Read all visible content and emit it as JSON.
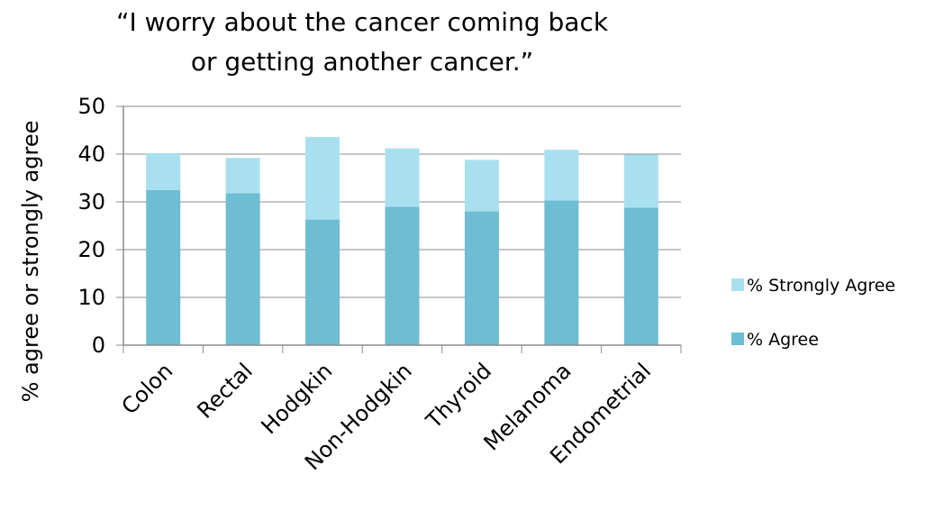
{
  "chart_data": {
    "type": "bar",
    "stacked": true,
    "title_line1": "“I worry about the cancer coming back",
    "title_line2": "or getting another cancer.”",
    "xlabel": "",
    "ylabel": "% agree or strongly agree",
    "ylim": [
      0,
      50
    ],
    "yticks": [
      0,
      10,
      20,
      30,
      40,
      50
    ],
    "grid": true,
    "legend_position": "right",
    "categories": [
      "Colon",
      "Rectal",
      "Hodgkin",
      "Non-Hodgkin",
      "Thyroid",
      "Melanoma",
      "Endometrial"
    ],
    "series": [
      {
        "name": "% Agree",
        "color": "#6dbdd3",
        "values": [
          32.5,
          31.8,
          26.3,
          29.0,
          28.0,
          30.3,
          28.8
        ]
      },
      {
        "name": "% Strongly Agree",
        "color": "#a9e0f0",
        "values": [
          7.7,
          7.4,
          17.3,
          12.2,
          10.8,
          10.6,
          11.1
        ]
      }
    ],
    "legend_order": [
      "% Strongly Agree",
      "% Agree"
    ]
  }
}
